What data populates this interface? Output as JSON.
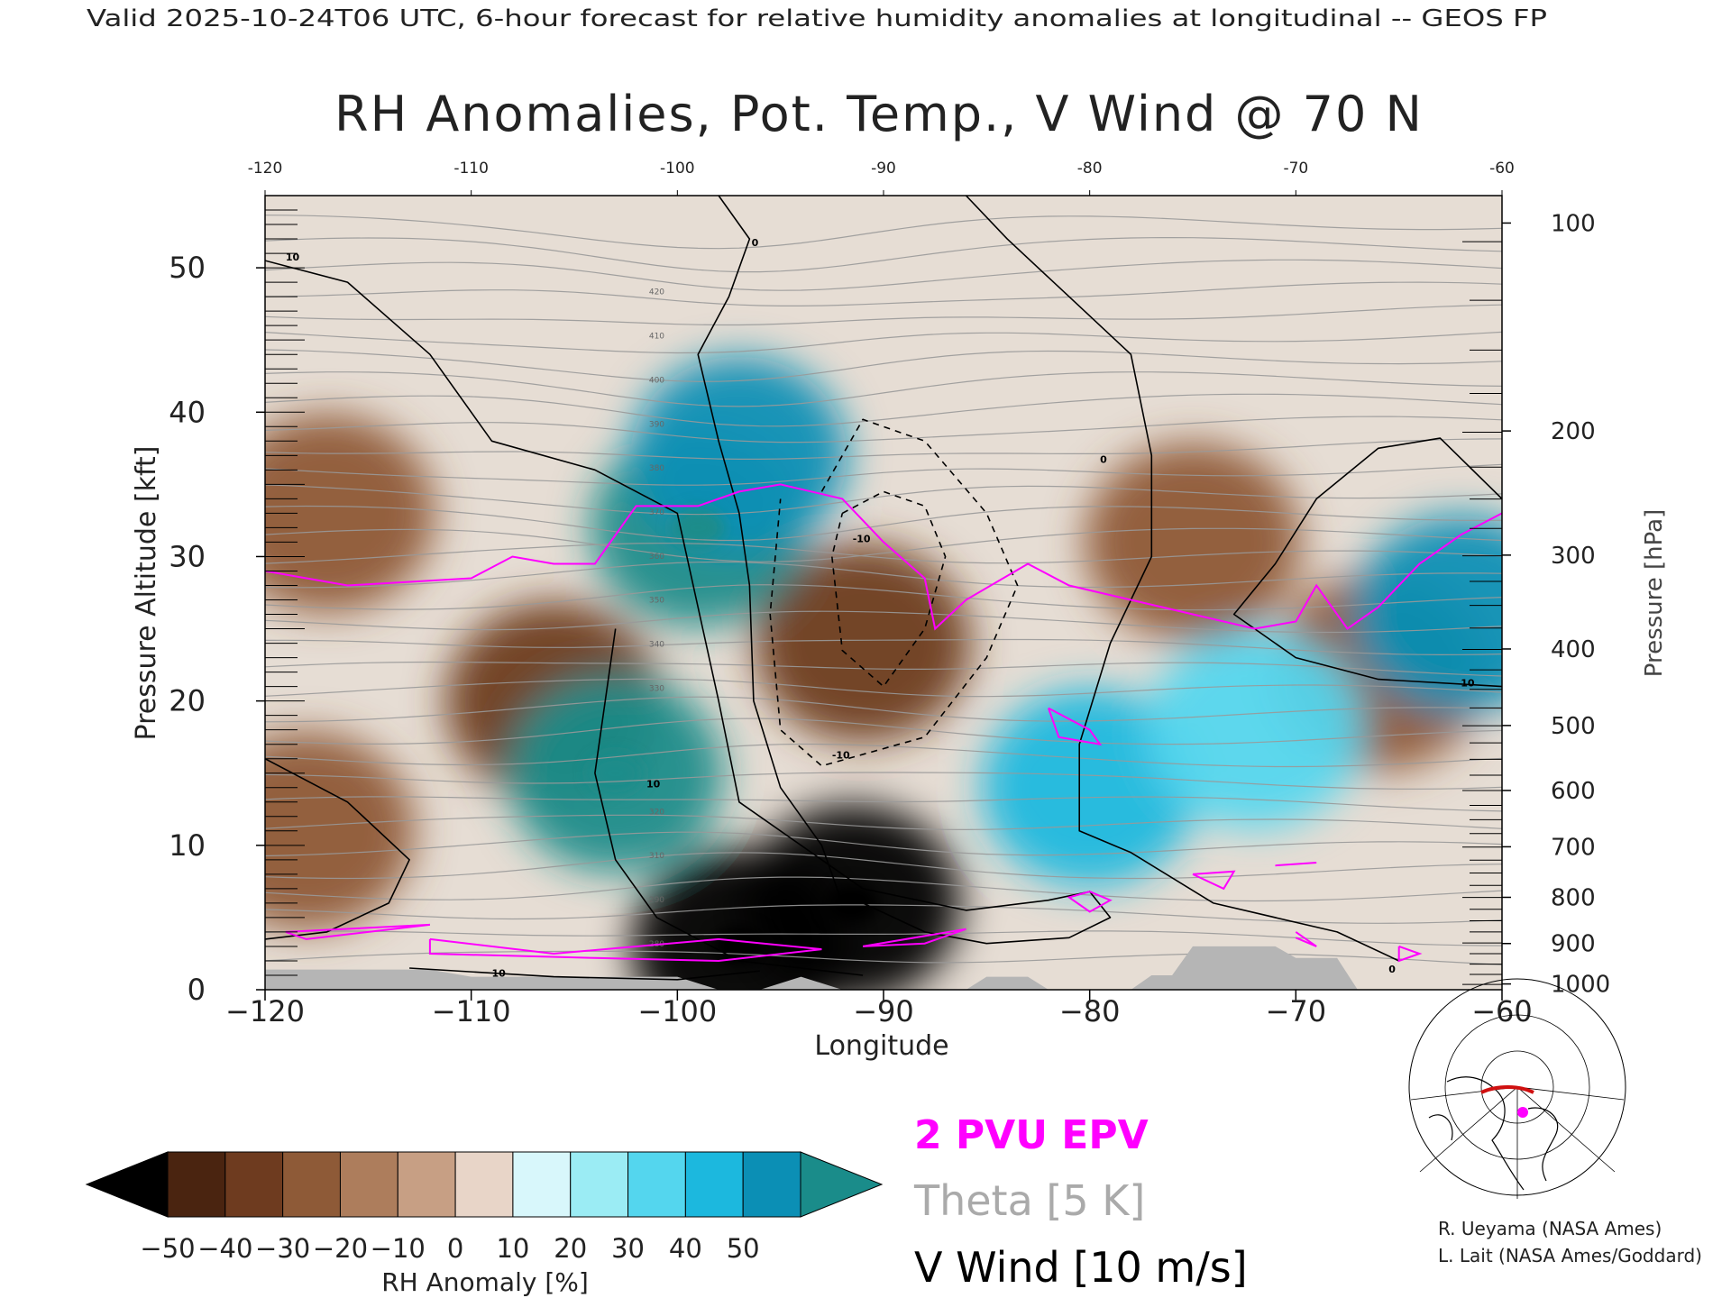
{
  "header": {
    "top_line": "Valid 2025-10-24T06 UTC, 6-hour forecast for relative humidity anomalies at longitudinal -- GEOS FP",
    "title": "RH Anomalies, Pot. Temp., V Wind @ 70 N"
  },
  "chart_data": {
    "type": "heatmap",
    "title": "RH Anomalies, Pot. Temp., V Wind @ 70 N",
    "xlabel": "Longitude",
    "ylabel": "Pressure Altitude [kft]",
    "y2label": "Pressure [hPa]",
    "xlim": [
      -120,
      -60
    ],
    "ylim": [
      0,
      55
    ],
    "x_ticks": [
      -120,
      -110,
      -100,
      -90,
      -80,
      -70,
      -60
    ],
    "x_tick_labels": [
      "−120",
      "−110",
      "−100",
      "−90",
      "−80",
      "−70",
      "−60"
    ],
    "x_top_tick_labels": [
      "-120",
      "-110",
      "-100",
      "-90",
      "-80",
      "-70",
      "-60"
    ],
    "y_ticks": [
      0,
      10,
      20,
      30,
      40,
      50
    ],
    "y_tick_labels": [
      "0",
      "10",
      "20",
      "30",
      "40",
      "50"
    ],
    "pressure_ticks": [
      {
        "label": "100",
        "kft": 53.1
      },
      {
        "label": "200",
        "kft": 38.7
      },
      {
        "label": "300",
        "kft": 30.1
      },
      {
        "label": "400",
        "kft": 23.6
      },
      {
        "label": "500",
        "kft": 18.3
      },
      {
        "label": "600",
        "kft": 13.8
      },
      {
        "label": "700",
        "kft": 9.9
      },
      {
        "label": "800",
        "kft": 6.4
      },
      {
        "label": "900",
        "kft": 3.2
      },
      {
        "label": "1000",
        "kft": 0.4
      }
    ],
    "colorbar": {
      "label": "RH Anomaly [%]",
      "tick_labels": [
        "−50",
        "−40",
        "−30",
        "−20",
        "−10",
        "0",
        "10",
        "20",
        "30",
        "40",
        "50"
      ],
      "colors": [
        "#4a2410",
        "#6e3b1f",
        "#8e5a37",
        "#ad7d5c",
        "#c79f84",
        "#e8d5c8",
        "#d8f7fb",
        "#9becf4",
        "#54d6ee",
        "#1cb8de",
        "#0b8fb5"
      ],
      "under_color": "#000000",
      "over_color": "#1a8c8a"
    },
    "rh_anomaly_regions": [
      {
        "lon": -117,
        "kft": 33,
        "value": -22
      },
      {
        "lon": -118,
        "kft": 11,
        "value": -28
      },
      {
        "lon": -106,
        "kft": 20,
        "value": -38
      },
      {
        "lon": -97,
        "kft": 3,
        "value": -55
      },
      {
        "lon": -91.5,
        "kft": 6,
        "value": -55
      },
      {
        "lon": -91,
        "kft": 24,
        "value": -35
      },
      {
        "lon": -75,
        "kft": 31,
        "value": -30
      },
      {
        "lon": -66,
        "kft": 22,
        "value": -30
      },
      {
        "lon": -99,
        "kft": 32,
        "value": 52
      },
      {
        "lon": -103,
        "kft": 15,
        "value": 52
      },
      {
        "lon": -97,
        "kft": 37,
        "value": 40
      },
      {
        "lon": -80,
        "kft": 14,
        "value": 35
      },
      {
        "lon": -72,
        "kft": 18,
        "value": 28
      },
      {
        "lon": -62,
        "kft": 26,
        "value": 40
      }
    ],
    "theta_contour_labels": [
      "280",
      "290",
      "310",
      "320",
      "330",
      "340",
      "350",
      "360",
      "370",
      "380",
      "390",
      "400",
      "410",
      "420"
    ],
    "wind_contour_labels": [
      "10",
      "0",
      "-10"
    ],
    "legend": [
      {
        "name": "2 PVU EPV",
        "color": "#ff00ff"
      },
      {
        "name": "Theta [5 K]",
        "color": "#aaaaaa"
      },
      {
        "name": "V Wind [10 m/s]",
        "color": "#000000"
      }
    ],
    "terrain_color": "#b5b5b5"
  },
  "credits": {
    "line1": "R. Ueyama (NASA Ames)",
    "line2": "L. Lait (NASA Ames/Goddard)"
  },
  "colors": {
    "epv": "#ff00ff",
    "theta": "#999999",
    "wind": "#000000",
    "text": "#222222"
  }
}
